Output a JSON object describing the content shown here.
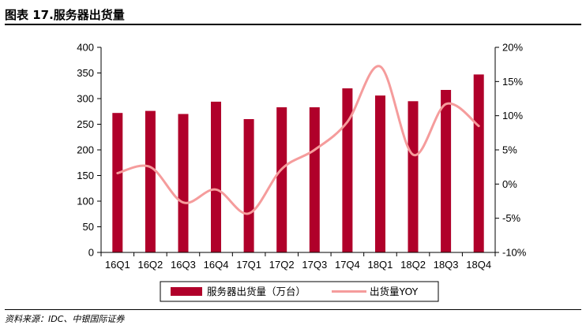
{
  "header": {
    "title": "图表 17.服务器出货量"
  },
  "source": {
    "text": "资料来源：IDC、中银国际证券"
  },
  "colors": {
    "bar": "#b0002a",
    "line": "#f59c9c",
    "axis": "#000000"
  },
  "chart_data": {
    "type": "bar+line",
    "title": "图表 17.服务器出货量",
    "categories": [
      "16Q1",
      "16Q2",
      "16Q3",
      "16Q4",
      "17Q1",
      "17Q2",
      "17Q3",
      "17Q4",
      "18Q1",
      "18Q2",
      "18Q3",
      "18Q4"
    ],
    "y_left": {
      "min": 0,
      "max": 400,
      "step": 50,
      "ticks": [
        "0",
        "50",
        "100",
        "150",
        "200",
        "250",
        "300",
        "350",
        "400"
      ]
    },
    "y_right": {
      "min": -10,
      "max": 20,
      "step": 5,
      "ticks": [
        "-10%",
        "-5%",
        "0%",
        "5%",
        "10%",
        "15%",
        "20%"
      ]
    },
    "series": [
      {
        "name": "服务器出货量（万台）",
        "type": "bar",
        "axis": "left",
        "values": [
          272,
          276,
          270,
          294,
          260,
          283,
          283,
          320,
          306,
          295,
          317,
          347
        ]
      },
      {
        "name": "出货量YOY",
        "type": "line",
        "axis": "right",
        "values": [
          1.6,
          2.5,
          -2.7,
          -0.8,
          -4.3,
          2.2,
          5.0,
          9.1,
          17.2,
          4.3,
          11.7,
          8.5
        ]
      }
    ],
    "legend": {
      "position": "bottom"
    },
    "grid": false
  }
}
